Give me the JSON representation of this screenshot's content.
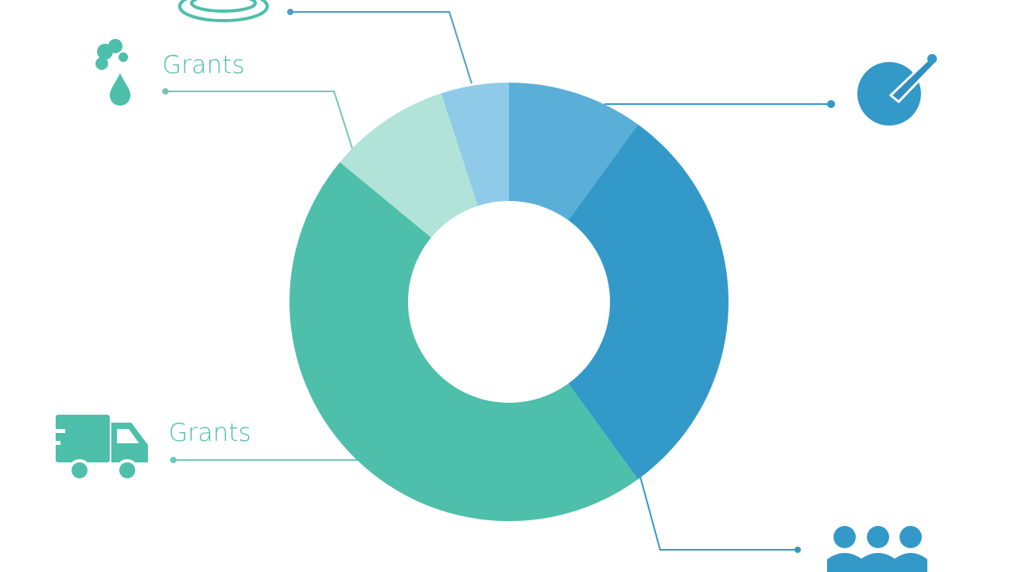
{
  "chart_data": {
    "type": "donut",
    "categories": [
      null,
      null,
      "Grants",
      "Grants",
      null
    ],
    "values": [
      10,
      30,
      46,
      9,
      5
    ],
    "colors": [
      "#5aafd8",
      "#3399c8",
      "#4dbfaa",
      "#b2e3d8",
      "#8fcbe8"
    ]
  }
}
